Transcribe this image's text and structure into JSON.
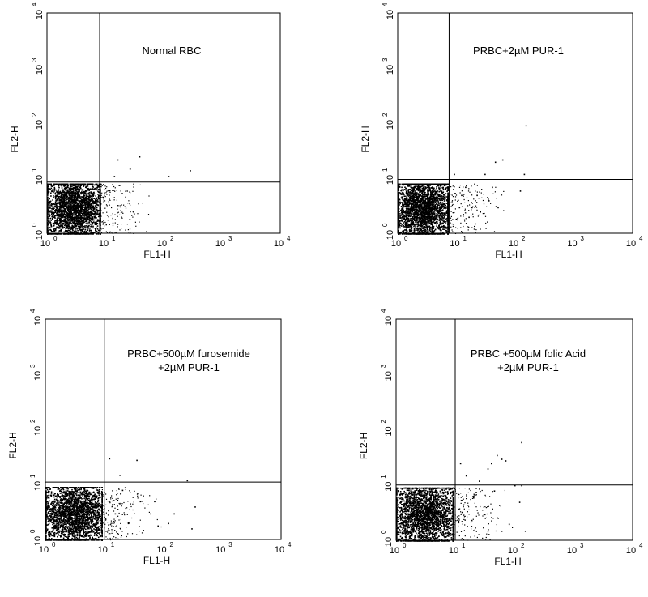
{
  "chart_data": [
    {
      "type": "scatter",
      "title_lines": [
        "Normal RBC"
      ],
      "xlabel": "FL1-H",
      "ylabel": "FL2-H",
      "xscale": "log",
      "yscale": "log",
      "xlim": [
        1,
        10000
      ],
      "ylim": [
        1,
        10000
      ],
      "x_ticks": [
        "10",
        "10",
        "10",
        "10",
        "10"
      ],
      "x_tick_exps": [
        "0",
        "1",
        "2",
        "3",
        "4"
      ],
      "y_ticks": [
        "10",
        "10",
        "10",
        "10",
        "10"
      ],
      "y_tick_exps": [
        "0",
        "1",
        "2",
        "3",
        "4"
      ],
      "gate_x": 8,
      "gate_y": 8.5,
      "cluster": {
        "x_range": [
          1,
          8
        ],
        "y_range": [
          1,
          8
        ]
      },
      "points": [
        [
          16,
          22
        ],
        [
          26,
          15
        ],
        [
          38,
          25
        ],
        [
          30,
          8
        ],
        [
          120,
          11
        ],
        [
          280,
          14
        ],
        [
          22,
          6
        ],
        [
          14,
          11
        ]
      ]
    },
    {
      "type": "scatter",
      "title_lines": [
        "PRBC+2µM PUR-1"
      ],
      "xlabel": "FL1-H",
      "ylabel": "FL2-H",
      "xscale": "log",
      "yscale": "log",
      "xlim": [
        1,
        10000
      ],
      "ylim": [
        1,
        10000
      ],
      "x_ticks": [
        "10",
        "10",
        "10",
        "10",
        "10"
      ],
      "x_tick_exps": [
        "0",
        "1",
        "2",
        "3",
        "4"
      ],
      "y_ticks": [
        "10",
        "10",
        "10",
        "10",
        "10"
      ],
      "y_tick_exps": [
        "0",
        "1",
        "2",
        "3",
        "4"
      ],
      "gate_x": 7.5,
      "gate_y": 9.5,
      "cluster": {
        "x_range": [
          1,
          7
        ],
        "y_range": [
          1,
          8
        ]
      },
      "points": [
        [
          150,
          92
        ],
        [
          60,
          22
        ],
        [
          140,
          12
        ],
        [
          120,
          6
        ],
        [
          45,
          20
        ],
        [
          30,
          12
        ],
        [
          20,
          8
        ],
        [
          12,
          5
        ],
        [
          18,
          3
        ],
        [
          25,
          2.5
        ],
        [
          35,
          4
        ],
        [
          50,
          3
        ],
        [
          14,
          7
        ],
        [
          22,
          5
        ],
        [
          9,
          12
        ],
        [
          11,
          3
        ],
        [
          16,
          2
        ],
        [
          40,
          7
        ]
      ]
    },
    {
      "type": "scatter",
      "title_lines": [
        "PRBC+500µM furosemide",
        "+2µM PUR-1"
      ],
      "xlabel": "FL1-H",
      "ylabel": "FL2-H",
      "xscale": "log",
      "yscale": "log",
      "xlim": [
        1,
        10000
      ],
      "ylim": [
        1,
        10000
      ],
      "x_ticks": [
        "10",
        "10",
        "10",
        "10",
        "10"
      ],
      "x_tick_exps": [
        "0",
        "1",
        "2",
        "3",
        "4"
      ],
      "y_ticks": [
        "10",
        "10",
        "10",
        "10",
        "10"
      ],
      "y_tick_exps": [
        "0",
        "1",
        "2",
        "3",
        "4"
      ],
      "gate_x": 10,
      "gate_y": 11,
      "cluster": {
        "x_range": [
          1,
          9
        ],
        "y_range": [
          1,
          9
        ]
      },
      "points": [
        [
          35,
          28
        ],
        [
          250,
          12
        ],
        [
          340,
          4
        ],
        [
          300,
          1.6
        ],
        [
          120,
          2
        ],
        [
          60,
          3
        ],
        [
          40,
          5
        ],
        [
          20,
          8
        ],
        [
          15,
          3
        ],
        [
          25,
          2
        ],
        [
          80,
          1.8
        ],
        [
          150,
          3
        ],
        [
          18,
          15
        ],
        [
          12,
          30
        ],
        [
          45,
          1.5
        ],
        [
          30,
          6
        ],
        [
          70,
          5
        ]
      ]
    },
    {
      "type": "scatter",
      "title_lines": [
        "PRBC +500µM folic Acid",
        "+2µM PUR-1"
      ],
      "xlabel": "FL1-H",
      "ylabel": "FL2-H",
      "xscale": "log",
      "yscale": "log",
      "xlim": [
        1,
        10000
      ],
      "ylim": [
        1,
        10000
      ],
      "x_ticks": [
        "10",
        "10",
        "10",
        "10",
        "10"
      ],
      "x_tick_exps": [
        "0",
        "1",
        "2",
        "3",
        "4"
      ],
      "y_ticks": [
        "10",
        "10",
        "10",
        "10",
        "10"
      ],
      "y_tick_exps": [
        "0",
        "1",
        "2",
        "3",
        "4"
      ],
      "gate_x": 10,
      "gate_y": 10,
      "cluster": {
        "x_range": [
          1,
          9
        ],
        "y_range": [
          1,
          9
        ]
      },
      "points": [
        [
          130,
          60
        ],
        [
          50,
          35
        ],
        [
          60,
          30
        ],
        [
          70,
          28
        ],
        [
          40,
          25
        ],
        [
          35,
          20
        ],
        [
          25,
          12
        ],
        [
          100,
          10
        ],
        [
          130,
          10
        ],
        [
          120,
          5
        ],
        [
          80,
          2
        ],
        [
          150,
          1.5
        ],
        [
          60,
          1.5
        ],
        [
          30,
          3
        ],
        [
          20,
          6
        ],
        [
          45,
          8
        ],
        [
          15,
          15
        ],
        [
          12,
          25
        ]
      ]
    }
  ]
}
